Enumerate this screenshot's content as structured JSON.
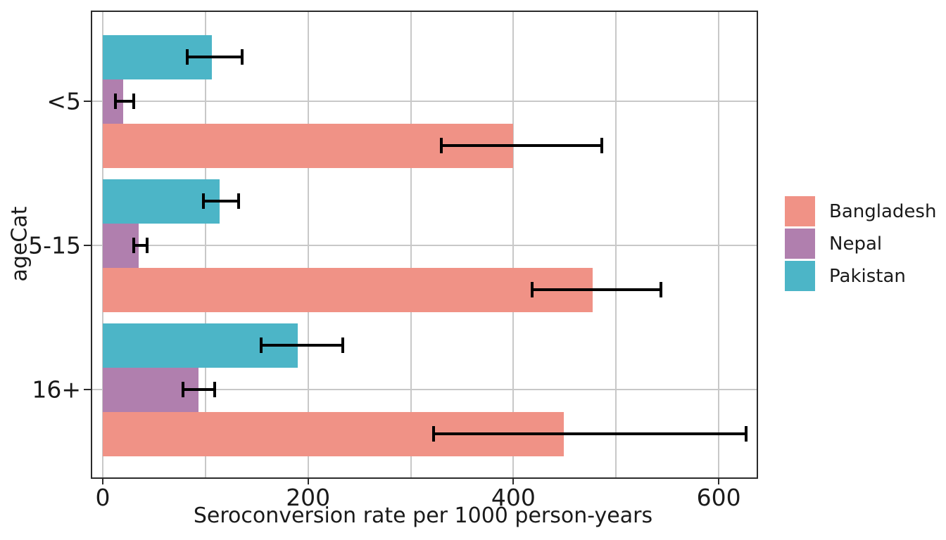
{
  "chart_data": {
    "type": "bar",
    "orientation": "horizontal",
    "title": "",
    "xlabel": "Seroconversion rate per 1000 person-years",
    "ylabel": "ageCat",
    "categories": [
      "<5",
      "5-15",
      "16+"
    ],
    "series": [
      {
        "name": "Bangladesh",
        "color": "#F09286",
        "values": [
          400,
          477,
          449
        ],
        "ci_low": [
          330,
          418,
          322
        ],
        "ci_high": [
          486,
          544,
          627
        ]
      },
      {
        "name": "Nepal",
        "color": "#B07FAE",
        "values": [
          20,
          35,
          93
        ],
        "ci_low": [
          12,
          30,
          78
        ],
        "ci_high": [
          30,
          43,
          109
        ]
      },
      {
        "name": "Pakistan",
        "color": "#4CB5C7",
        "values": [
          106,
          114,
          190
        ],
        "ci_low": [
          82,
          98,
          154
        ],
        "ci_high": [
          136,
          132,
          234
        ]
      }
    ],
    "x_ticks": [
      0,
      200,
      400,
      600
    ],
    "x_gridlines": [
      0,
      100,
      200,
      300,
      400,
      500,
      600
    ],
    "xlim": [
      0,
      637
    ],
    "legend_position": "right",
    "error_bars": true,
    "grid": true,
    "colors": {
      "gridline": "#c8c8c8",
      "panel_border": "#2b2b2b",
      "error_bar": "#000000",
      "text": "#1a1a1a",
      "background": "#ffffff"
    }
  }
}
